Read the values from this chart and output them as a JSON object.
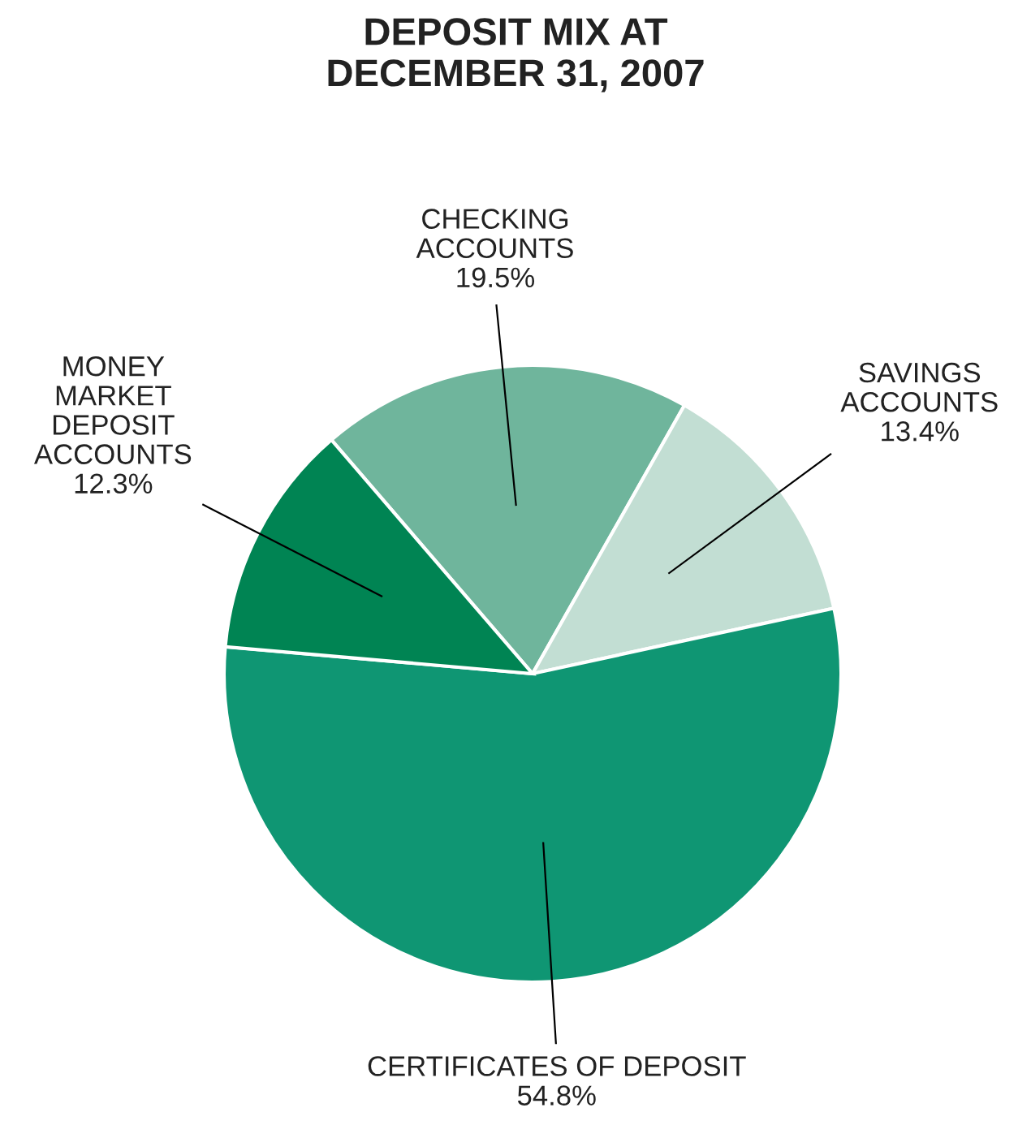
{
  "chart_data": {
    "type": "pie",
    "title": "DEPOSIT MIX AT\nDECEMBER 31, 2007",
    "categories": [
      "CHECKING\nACCOUNTS",
      "SAVINGS\nACCOUNTS",
      "CERTIFICATES OF DEPOSIT",
      "MONEY\nMARKET\nDEPOSIT\nACCOUNTS"
    ],
    "values": [
      19.5,
      13.4,
      54.8,
      12.3
    ],
    "colors": [
      "#6fb59c",
      "#c2ded3",
      "#0f9673",
      "#008453"
    ],
    "value_labels": [
      "19.5%",
      "13.4%",
      "54.8%",
      "12.3%"
    ]
  }
}
